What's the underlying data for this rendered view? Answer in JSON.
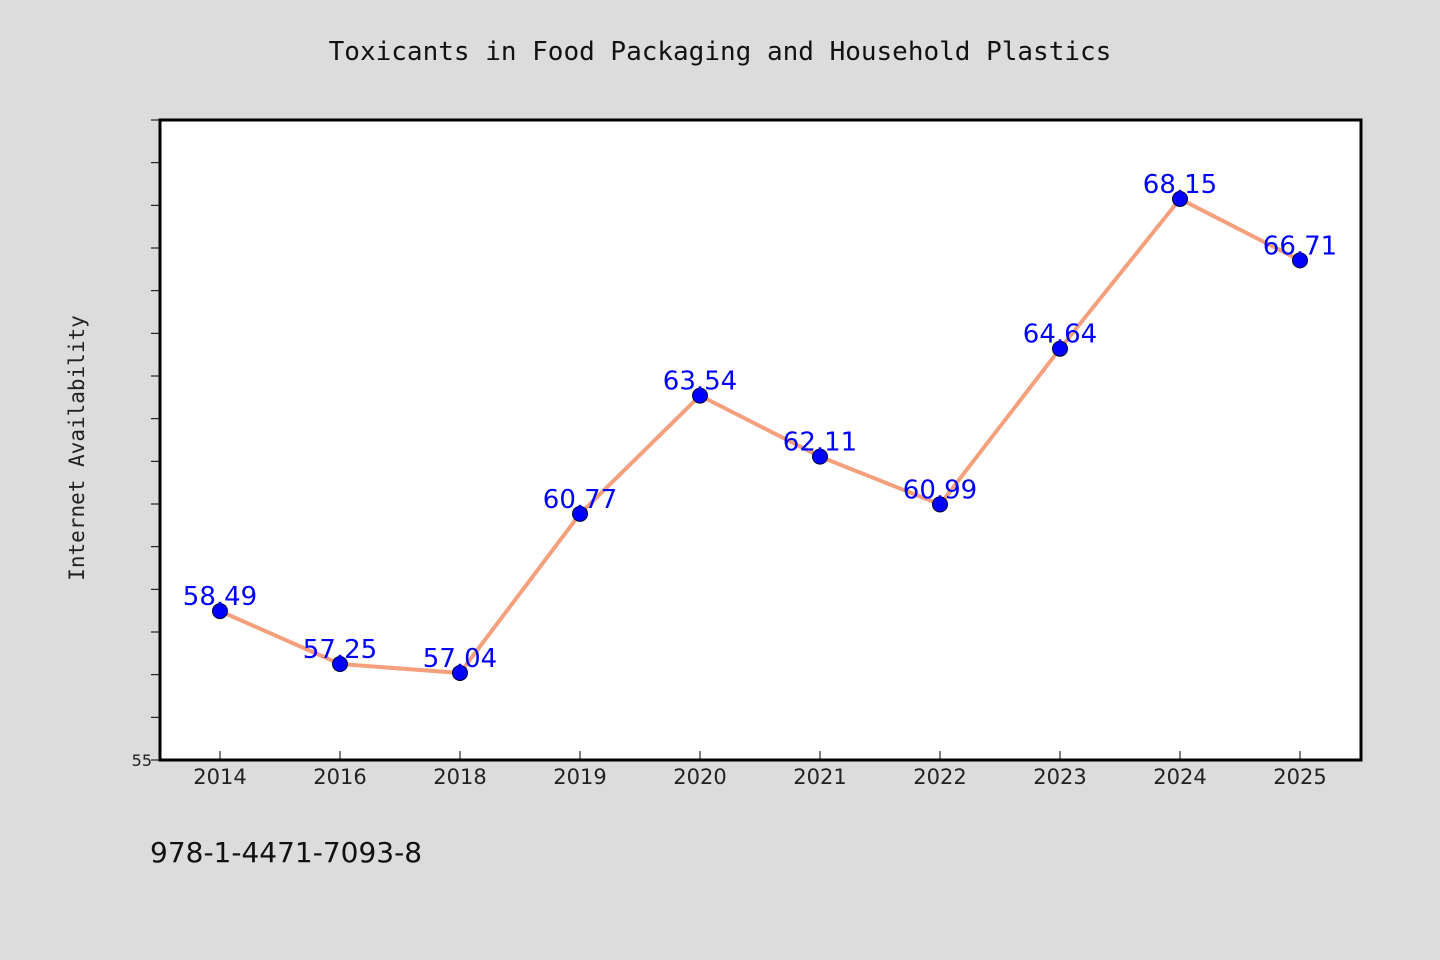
{
  "colors": {
    "background": "#dcdcdc",
    "plot_background": "#ffffff",
    "line": "#f4a07c",
    "marker": "#0000ff",
    "label": "#0000ff"
  },
  "footer": {
    "text": "978-1-4471-7093-8"
  },
  "chart_data": {
    "type": "line",
    "title": "Toxicants in Food Packaging and Household Plastics",
    "xlabel": "",
    "ylabel": "Internet Availability",
    "categories": [
      "2014",
      "2016",
      "2018",
      "2019",
      "2020",
      "2021",
      "2022",
      "2023",
      "2024",
      "2025"
    ],
    "series": [
      {
        "values": [
          58.49,
          57.25,
          57.04,
          60.77,
          63.54,
          62.11,
          60.99,
          64.64,
          68.15,
          66.71
        ]
      }
    ],
    "y_tick_labels": [
      "55"
    ],
    "ylim": [
      55,
      70
    ],
    "grid": false,
    "legend": "none"
  }
}
